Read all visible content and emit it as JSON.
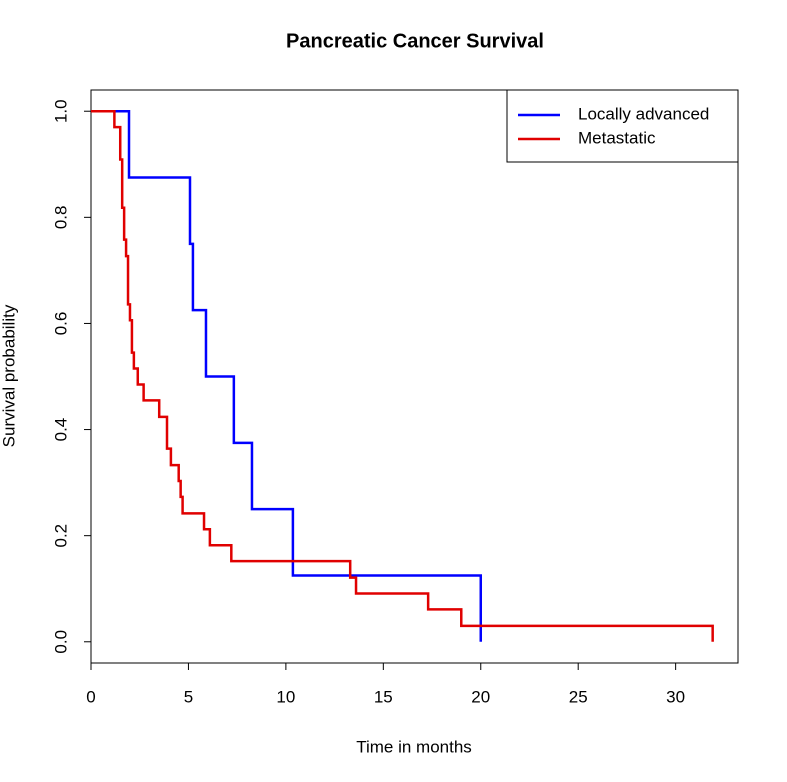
{
  "chart_data": {
    "type": "step",
    "title": "Pancreatic Cancer Survival",
    "x_label": "Time in months",
    "y_label": "Survival probability",
    "xlim": [
      0,
      33.2
    ],
    "ylim": [
      -0.04,
      1.04
    ],
    "xticks": [
      0,
      5,
      10,
      15,
      20,
      25,
      30
    ],
    "yticks": [
      {
        "value": 0,
        "label": "0.0"
      },
      0.2,
      0.4,
      0.6,
      0.8,
      {
        "value": 1,
        "label": "1.0"
      }
    ],
    "legend": "top-right",
    "series": [
      {
        "name": "Locally advanced",
        "color": "#0000ff",
        "x": [
          0,
          1.95,
          5.08,
          5.23,
          5.9,
          7.33,
          8.26,
          10.36,
          20
        ],
        "values": [
          1,
          0.875,
          0.75,
          0.625,
          0.5,
          0.375,
          0.25,
          0.125,
          0
        ]
      },
      {
        "name": "Metastatic",
        "color": "#e00000",
        "x": [
          0,
          1.2,
          1.5,
          1.6,
          1.7,
          1.8,
          1.9,
          2.0,
          2.1,
          2.2,
          2.4,
          2.7,
          3.5,
          3.9,
          4.1,
          4.5,
          4.6,
          4.7,
          5.8,
          6.1,
          7.2,
          13.3,
          13.6,
          17.3,
          19.0,
          31.9
        ],
        "values": [
          1,
          0.97,
          0.909,
          0.818,
          0.758,
          0.727,
          0.636,
          0.606,
          0.545,
          0.515,
          0.485,
          0.455,
          0.424,
          0.364,
          0.333,
          0.303,
          0.273,
          0.242,
          0.212,
          0.182,
          0.152,
          0.121,
          0.091,
          0.061,
          0.03,
          0
        ]
      }
    ]
  }
}
